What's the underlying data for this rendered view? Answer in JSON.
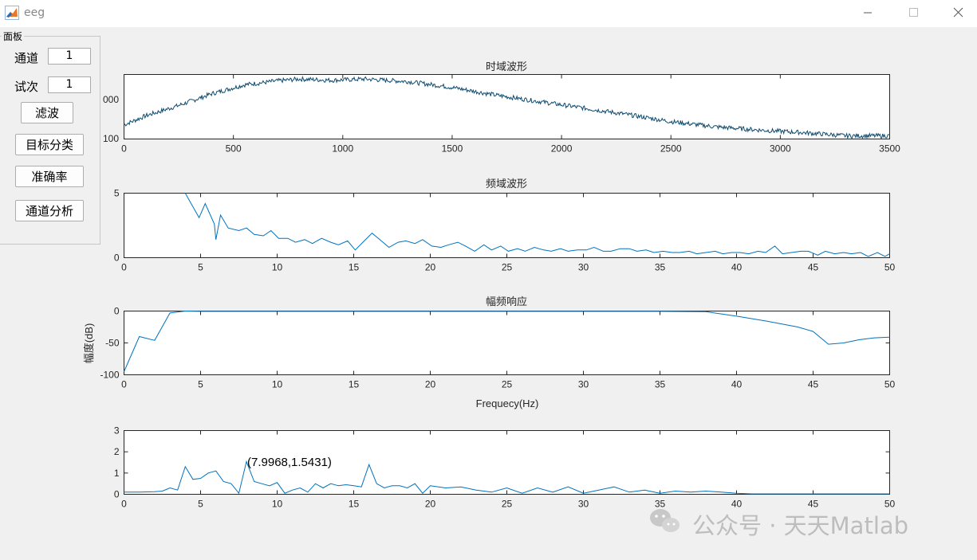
{
  "window": {
    "title": "eeg"
  },
  "panel": {
    "title": "面板",
    "channel_label": "通道",
    "channel_value": "1",
    "trial_label": "试次",
    "trial_value": "1",
    "buttons": {
      "filter": "滤波",
      "classify": "目标分类",
      "accuracy": "准确率",
      "channel_analysis": "通道分析"
    }
  },
  "chart_data": [
    {
      "type": "line",
      "title": "时域波形",
      "xlim": [
        0,
        3500
      ],
      "xticks": [
        0,
        500,
        1000,
        1500,
        2000,
        2500,
        3000,
        3500
      ],
      "yticks_visible": [
        "000",
        "100"
      ],
      "envelope_x": [
        0,
        100,
        250,
        400,
        550,
        700,
        800,
        950,
        1100,
        1300,
        1500,
        1700,
        1900,
        2100,
        2300,
        2500,
        2700,
        2900,
        3100,
        3300,
        3500
      ],
      "envelope_y": [
        0.22,
        0.36,
        0.52,
        0.7,
        0.84,
        0.9,
        0.93,
        0.91,
        0.93,
        0.89,
        0.8,
        0.68,
        0.58,
        0.48,
        0.38,
        0.27,
        0.19,
        0.14,
        0.1,
        0.05,
        0.05
      ],
      "color": "#0e4a6e"
    },
    {
      "type": "line",
      "title": "频域波形",
      "xlim": [
        0,
        50
      ],
      "ylim": [
        0,
        5
      ],
      "xticks": [
        0,
        5,
        10,
        15,
        20,
        25,
        30,
        35,
        40,
        45,
        50
      ],
      "yticks": [
        0,
        5
      ],
      "x": [
        4,
        4.9,
        5.3,
        5.9,
        6.0,
        6.3,
        6.8,
        7.5,
        8.0,
        8.5,
        9.1,
        9.6,
        10.1,
        10.7,
        11.2,
        11.8,
        12.3,
        12.9,
        13.5,
        14.0,
        14.6,
        15.1,
        15.6,
        16.2,
        16.8,
        17.3,
        17.9,
        18.4,
        19.0,
        19.5,
        20.1,
        20.7,
        21.2,
        21.8,
        22.3,
        22.9,
        23.5,
        24.0,
        24.6,
        25.1,
        25.7,
        26.2,
        26.8,
        27.4,
        27.9,
        28.5,
        29.0,
        29.6,
        30.2,
        30.7,
        31.3,
        31.8,
        32.4,
        33.0,
        33.5,
        34.1,
        34.6,
        35.2,
        35.8,
        36.3,
        36.9,
        37.4,
        38.0,
        38.6,
        39.1,
        39.7,
        40.2,
        40.8,
        41.4,
        41.9,
        42.5,
        43.0,
        43.6,
        44.2,
        44.7,
        45.3,
        45.8,
        46.4,
        47.0,
        47.5,
        48.1,
        48.6,
        49.2,
        49.7,
        50.0
      ],
      "y": [
        5.0,
        3.1,
        4.2,
        2.6,
        1.4,
        3.3,
        2.3,
        2.1,
        2.3,
        1.8,
        1.7,
        2.1,
        1.5,
        1.5,
        1.2,
        1.4,
        1.1,
        1.5,
        1.2,
        1.0,
        1.3,
        0.6,
        1.2,
        1.9,
        1.3,
        0.8,
        1.2,
        1.3,
        1.1,
        1.4,
        0.9,
        0.8,
        1.0,
        1.2,
        0.9,
        0.5,
        1.0,
        0.6,
        0.9,
        0.5,
        0.7,
        0.5,
        0.8,
        0.6,
        0.5,
        0.7,
        0.5,
        0.6,
        0.6,
        0.8,
        0.5,
        0.5,
        0.7,
        0.7,
        0.5,
        0.6,
        0.4,
        0.5,
        0.4,
        0.4,
        0.5,
        0.3,
        0.4,
        0.5,
        0.3,
        0.4,
        0.4,
        0.3,
        0.5,
        0.4,
        0.9,
        0.3,
        0.4,
        0.5,
        0.5,
        0.2,
        0.5,
        0.3,
        0.4,
        0.3,
        0.4,
        0.1,
        0.4,
        0.1,
        0.3
      ]
    },
    {
      "type": "line",
      "title": "幅频响应",
      "xlabel": "Frequecy(Hz)",
      "ylabel": "幅度(dB)",
      "xlim": [
        0,
        50
      ],
      "ylim": [
        -100,
        0
      ],
      "xticks": [
        0,
        5,
        10,
        15,
        20,
        25,
        30,
        35,
        40,
        45,
        50
      ],
      "yticks": [
        -100,
        -50,
        0
      ],
      "x": [
        0,
        1,
        2,
        3,
        4,
        5,
        10,
        20,
        30,
        35,
        38,
        40,
        42,
        44,
        45,
        46,
        47,
        48,
        49,
        50
      ],
      "y": [
        -95,
        -40,
        -46,
        -3,
        0,
        -0.5,
        -0.5,
        -0.5,
        -0.5,
        -0.5,
        -1,
        -8,
        -16,
        -25,
        -32,
        -52,
        -50,
        -45,
        -42,
        -41
      ]
    },
    {
      "type": "line",
      "xlim": [
        0,
        50
      ],
      "ylim": [
        0,
        3
      ],
      "xticks": [
        0,
        5,
        10,
        15,
        20,
        25,
        30,
        35,
        40,
        45,
        50
      ],
      "yticks": [
        0,
        1,
        2,
        3
      ],
      "annotation": "(7.9968,1.5431)",
      "x": [
        0,
        1,
        2,
        2.5,
        3,
        3.5,
        4,
        4.5,
        5,
        5.5,
        6,
        6.5,
        7,
        7.5,
        7.9968,
        8.5,
        9,
        9.5,
        10,
        10.5,
        11,
        11.5,
        12,
        12.5,
        13,
        13.5,
        14,
        14.5,
        15,
        15.5,
        16,
        16.5,
        17,
        17.5,
        18,
        18.5,
        19,
        19.5,
        20,
        21,
        22,
        23,
        24,
        25,
        26,
        27,
        28,
        29,
        30,
        31,
        32,
        33,
        34,
        35,
        36,
        37,
        38,
        39,
        40,
        41,
        42,
        43,
        44,
        45,
        46,
        47,
        48,
        49,
        50
      ],
      "y": [
        0.1,
        0.1,
        0.12,
        0.15,
        0.3,
        0.2,
        1.3,
        0.7,
        0.75,
        1.0,
        1.1,
        0.6,
        0.5,
        0.05,
        1.5431,
        0.6,
        0.5,
        0.4,
        0.55,
        0.05,
        0.2,
        0.3,
        0.1,
        0.5,
        0.3,
        0.5,
        0.4,
        0.45,
        0.4,
        0.35,
        1.4,
        0.5,
        0.3,
        0.4,
        0.4,
        0.3,
        0.5,
        0.05,
        0.4,
        0.3,
        0.35,
        0.2,
        0.1,
        0.3,
        0.05,
        0.3,
        0.1,
        0.35,
        0.05,
        0.2,
        0.35,
        0.1,
        0.2,
        0.05,
        0.15,
        0.1,
        0.15,
        0.1,
        0.05,
        0.02,
        0.02,
        0.02,
        0.02,
        0.02,
        0.02,
        0.02,
        0.02,
        0.02,
        0.02
      ]
    }
  ],
  "watermark": {
    "text": "公众号 · 天天Matlab",
    "icon": "wechat-icon"
  }
}
